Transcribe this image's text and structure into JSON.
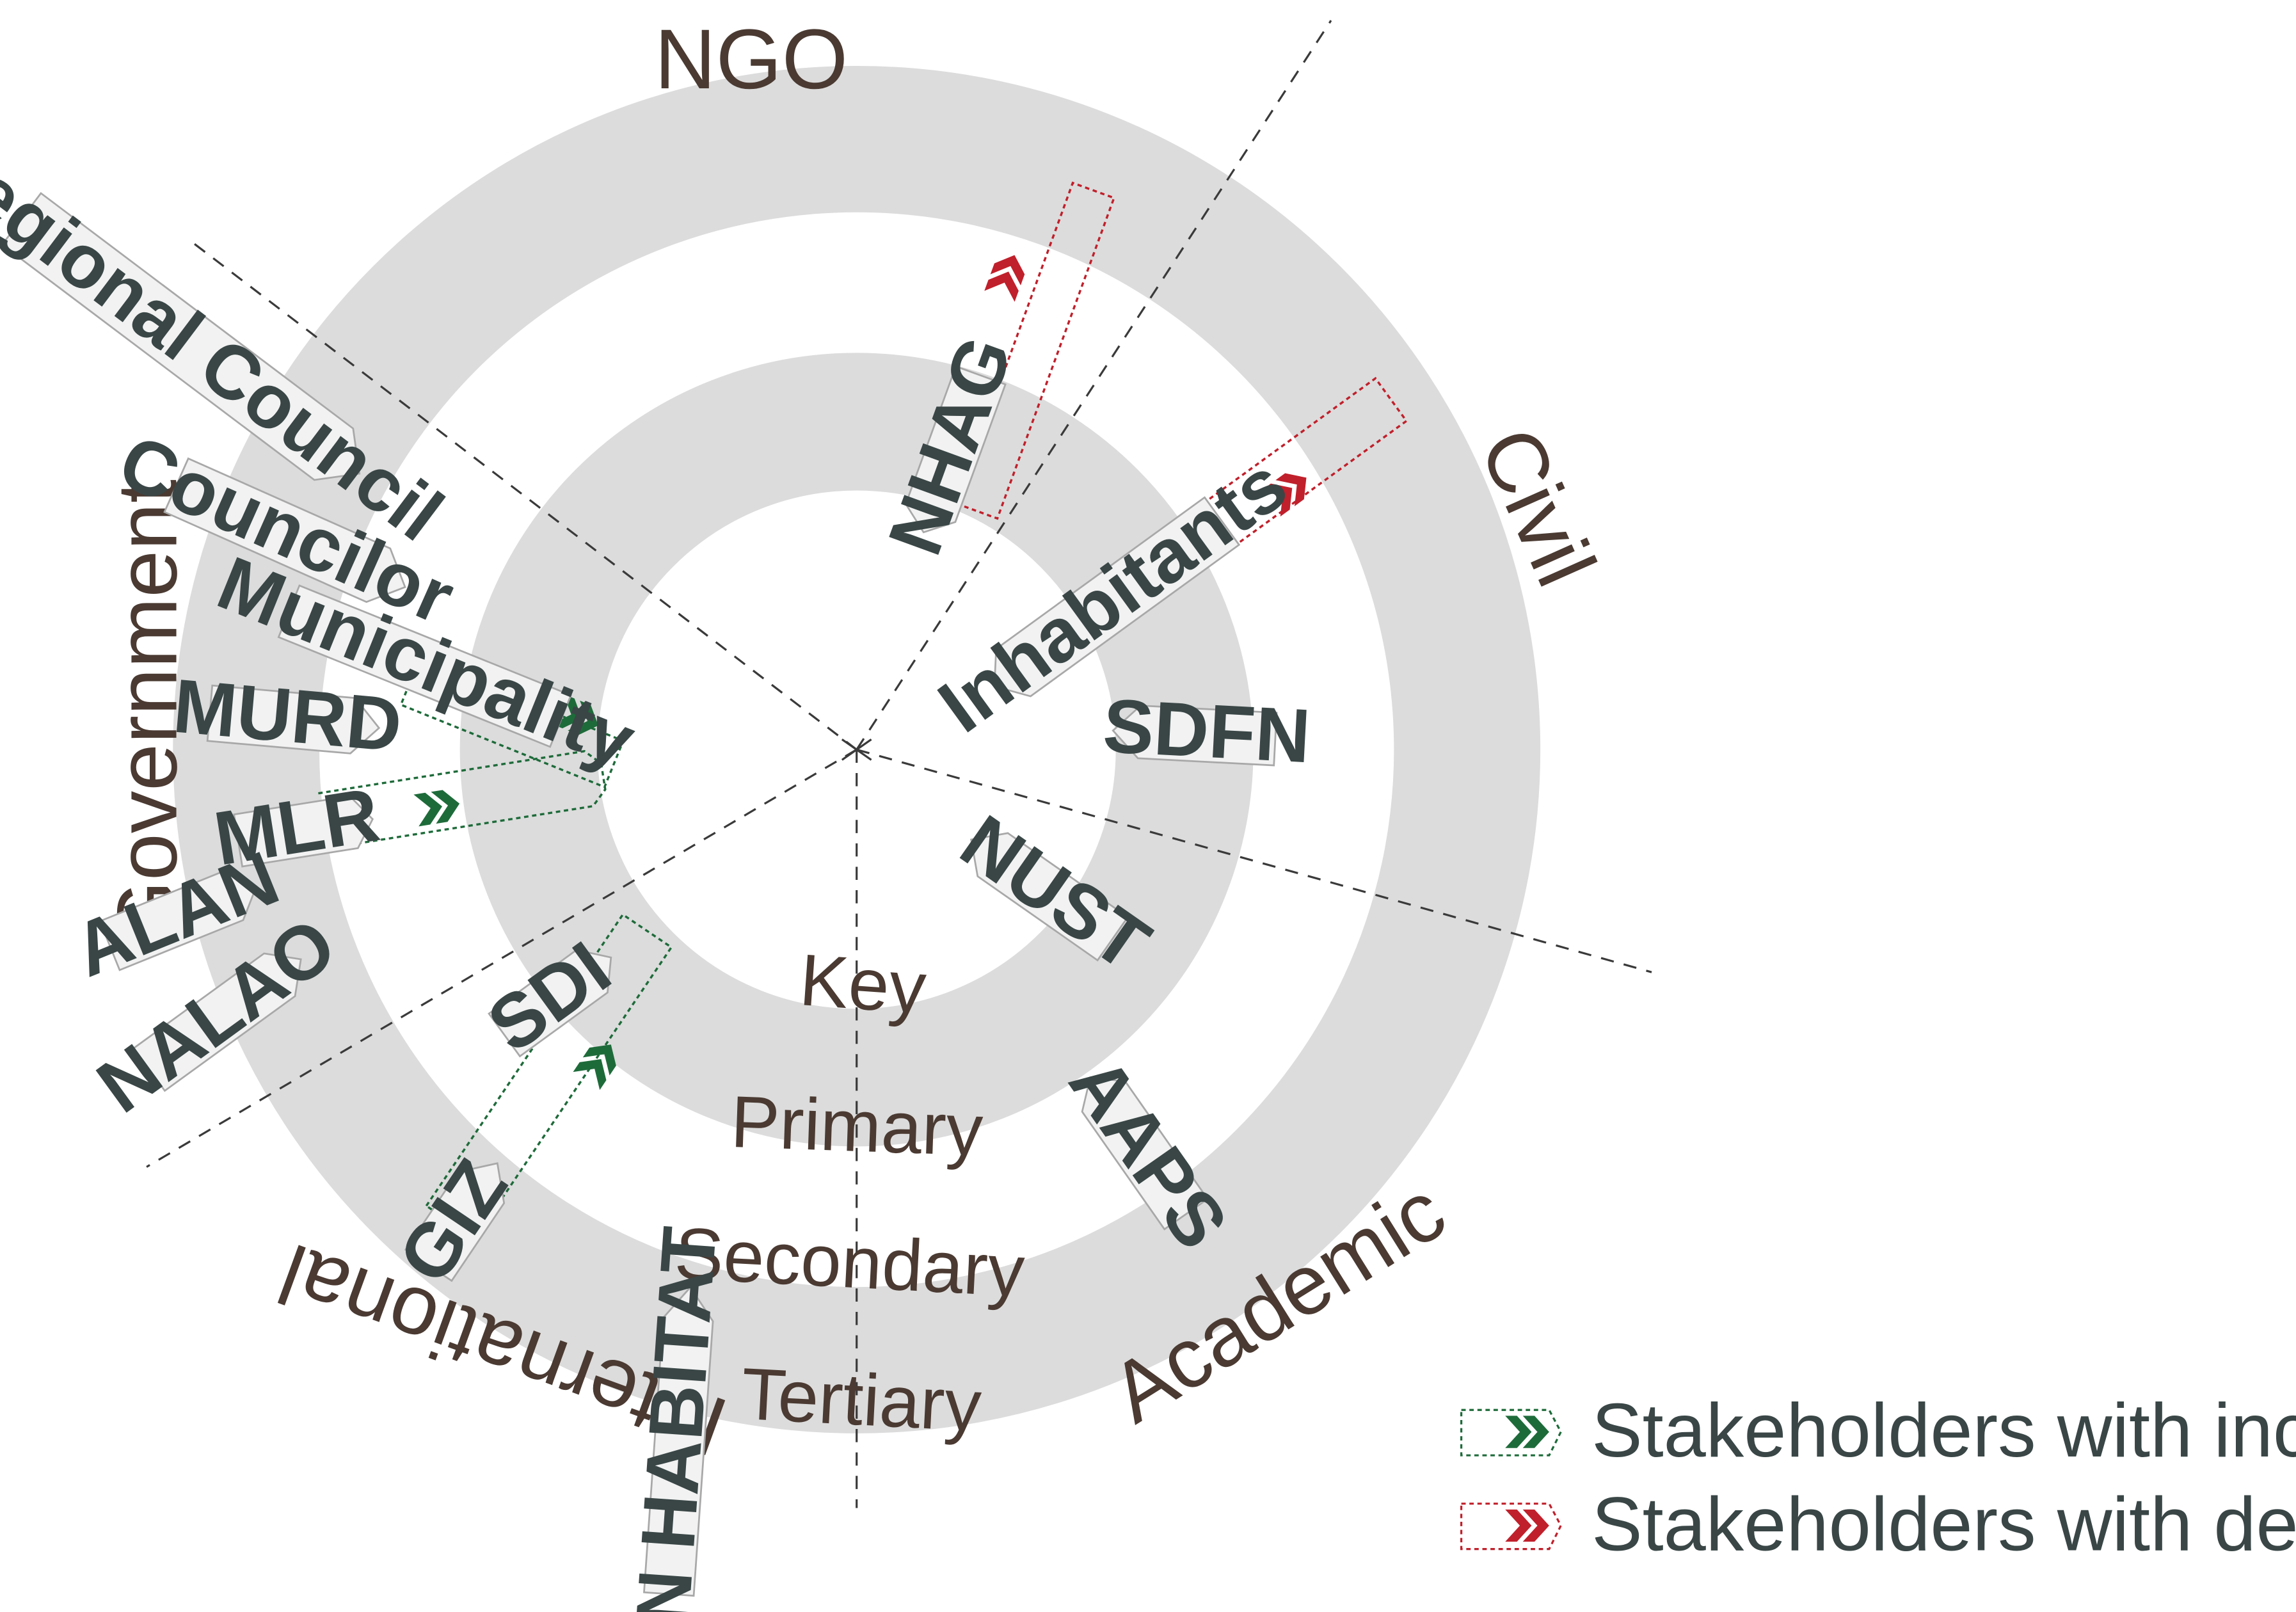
{
  "diagram": {
    "sectors": [
      {
        "id": "ngo",
        "label": "NGO"
      },
      {
        "id": "civil",
        "label": "Civil"
      },
      {
        "id": "academic",
        "label": "Academic"
      },
      {
        "id": "international",
        "label": "International"
      },
      {
        "id": "government",
        "label": "Government"
      }
    ],
    "rings": [
      {
        "id": "key",
        "label": "Key"
      },
      {
        "id": "primary",
        "label": "Primary"
      },
      {
        "id": "secondary",
        "label": "Secondary"
      },
      {
        "id": "tertiary",
        "label": "Tertiary"
      }
    ],
    "stakeholders": [
      {
        "id": "regional-council",
        "label": "Regional Council",
        "sector": "Government",
        "ring": "Tertiary",
        "trend": "stable"
      },
      {
        "id": "councilor",
        "label": "Councilor",
        "sector": "Government",
        "ring": "Secondary",
        "trend": "stable"
      },
      {
        "id": "municipality",
        "label": "Municipality",
        "sector": "Government",
        "ring": "Secondary",
        "trend": "increasing"
      },
      {
        "id": "murd",
        "label": "MURD",
        "sector": "Government",
        "ring": "Secondary",
        "trend": "stable"
      },
      {
        "id": "mlr",
        "label": "MLR",
        "sector": "Government",
        "ring": "Secondary",
        "trend": "increasing"
      },
      {
        "id": "alan",
        "label": "ALAN",
        "sector": "Government",
        "ring": "Tertiary",
        "trend": "stable"
      },
      {
        "id": "nalao",
        "label": "NALAO",
        "sector": "Government",
        "ring": "Tertiary",
        "trend": "stable"
      },
      {
        "id": "nhag",
        "label": "NHAG",
        "sector": "NGO",
        "ring": "Primary",
        "trend": "decreasing"
      },
      {
        "id": "inhabitants",
        "label": "Inhabitants",
        "sector": "Civil",
        "ring": "Primary",
        "trend": "decreasing"
      },
      {
        "id": "sdfn",
        "label": "SDFN",
        "sector": "Civil",
        "ring": "Primary",
        "trend": "stable"
      },
      {
        "id": "nust",
        "label": "NUST",
        "sector": "Academic",
        "ring": "Primary",
        "trend": "stable"
      },
      {
        "id": "aaps",
        "label": "AAPS",
        "sector": "Academic",
        "ring": "Secondary",
        "trend": "stable"
      },
      {
        "id": "sdi",
        "label": "SDI",
        "sector": "International",
        "ring": "Primary",
        "trend": "stable"
      },
      {
        "id": "giz",
        "label": "GIZ",
        "sector": "International",
        "ring": "Secondary",
        "trend": "increasing"
      },
      {
        "id": "un-habitat",
        "label": "UN HABITAT",
        "sector": "International",
        "ring": "Tertiary",
        "trend": "stable"
      }
    ],
    "legend": {
      "increasing": "Stakeholders with increasing involvement",
      "decreasing": "Stakeholders with decreasing involvement"
    },
    "colors": {
      "ring_fill": "#dcdcdc",
      "tag_fill": "#f2f2f2",
      "tag_stroke": "#a8a8a8",
      "increasing": "#1e6b3a",
      "decreasing": "#c0202b",
      "axis": "#3a3a3a",
      "label_text": "#4a3a32"
    },
    "icons": {
      "increasing": "double-chevron-right-icon",
      "decreasing": "double-chevron-right-icon"
    }
  }
}
